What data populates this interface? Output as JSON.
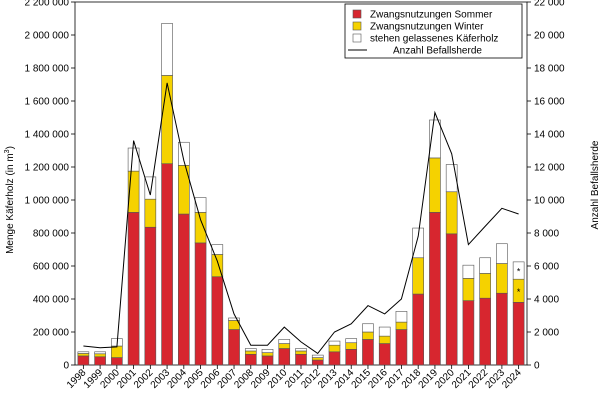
{
  "chart_data": {
    "type": "bar",
    "stacked": true,
    "categories": [
      "1998",
      "1999",
      "2000",
      "2001",
      "2002",
      "2003",
      "2004",
      "2005",
      "2006",
      "2007",
      "2008",
      "2009",
      "2010",
      "2011",
      "2012",
      "2013",
      "2014",
      "2015",
      "2016",
      "2017",
      "2018",
      "2019",
      "2020",
      "2021",
      "2022",
      "2023",
      "2024"
    ],
    "series": [
      {
        "name": "Zwangsnutzungen Sommer",
        "color": "#d7262f",
        "values": [
          55000,
          50000,
          45000,
          925000,
          835000,
          1220000,
          915000,
          740000,
          535000,
          215000,
          65000,
          55000,
          100000,
          65000,
          30000,
          80000,
          95000,
          155000,
          130000,
          215000,
          430000,
          925000,
          795000,
          390000,
          405000,
          435000,
          380000
        ]
      },
      {
        "name": "Zwangsnutzungen Winter",
        "color": "#f5d200",
        "values": [
          15000,
          18000,
          70000,
          250000,
          170000,
          535000,
          295000,
          185000,
          135000,
          55000,
          20000,
          20000,
          30000,
          20000,
          15000,
          40000,
          40000,
          45000,
          45000,
          45000,
          220000,
          330000,
          255000,
          135000,
          150000,
          180000,
          140000
        ]
      },
      {
        "name": "stehen gelassenes Käferholz",
        "color": "#ffffff",
        "values": [
          10000,
          12000,
          45000,
          140000,
          135000,
          315000,
          140000,
          90000,
          60000,
          15000,
          15000,
          20000,
          25000,
          15000,
          15000,
          25000,
          25000,
          50000,
          55000,
          65000,
          180000,
          230000,
          165000,
          80000,
          95000,
          120000,
          105000
        ]
      }
    ],
    "line": {
      "name": "Anzahl Befallsherde",
      "color": "#000000",
      "values": [
        1150,
        1050,
        1100,
        13600,
        10300,
        17100,
        12400,
        8800,
        6300,
        3100,
        1200,
        1200,
        2300,
        1400,
        700,
        2000,
        2500,
        3600,
        3100,
        4000,
        7800,
        15300,
        12800,
        7300,
        8400,
        9500,
        9150
      ]
    },
    "ylabel": "Menge Käferholz (in m³)",
    "ylabel_main": "Menge Käferholz (in m",
    "ylabel_sup": "3",
    "ylabel_end": ")",
    "y2label": "Anzahl Befallsherde",
    "ylim": [
      0,
      2200000
    ],
    "y2lim": [
      0,
      22000
    ],
    "yticks": [
      "0",
      "200 000",
      "400 000",
      "600 000",
      "800 000",
      "1 000 000",
      "1 200 000",
      "1 400 000",
      "1 600 000",
      "1 800 000",
      "2 000 000",
      "2 200 000"
    ],
    "y2ticks": [
      "0",
      "2 000",
      "4 000",
      "6 000",
      "8 000",
      "10 000",
      "12 000",
      "14 000",
      "16 000",
      "18 000",
      "20 000",
      "22 000"
    ],
    "markers_2024": {
      "sommer": "*",
      "winter": "*"
    },
    "legend_position": "top-right",
    "grid": false
  }
}
